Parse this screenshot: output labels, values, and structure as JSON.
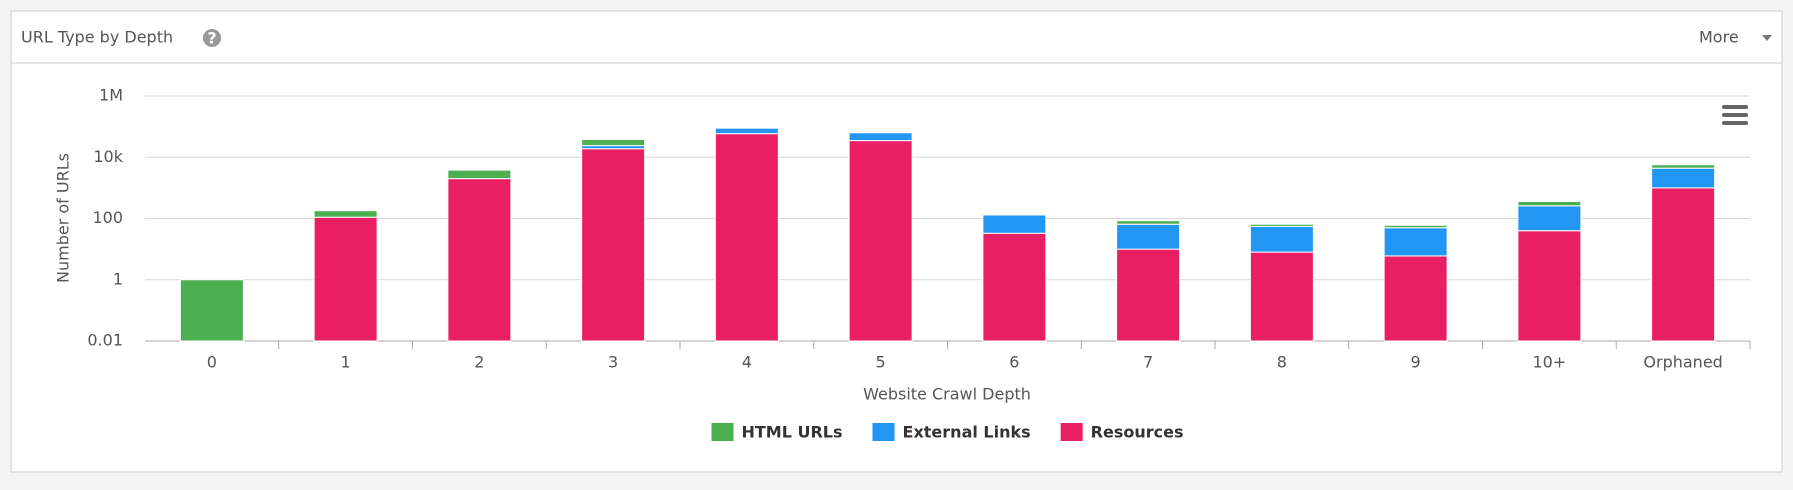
{
  "header": {
    "menu": "More",
    "help_icon": "?"
  },
  "chart_data": {
    "type": "bar",
    "stacked": true,
    "log_scale": true,
    "grid": true,
    "title": "URL Type by Depth",
    "x_label": "Website Crawl Depth",
    "y_label": "Number of URLs",
    "categories": [
      "0",
      "1",
      "2",
      "3",
      "4",
      "5",
      "6",
      "7",
      "8",
      "9",
      "10+",
      "Orphaned"
    ],
    "series": [
      {
        "name": "Resources",
        "color": "#e91e63",
        "values": [
          null,
          110,
          2000,
          19000,
          59000,
          35000,
          33,
          10,
          8,
          6,
          40,
          1000
        ]
      },
      {
        "name": "External Links",
        "color": "#2196f3",
        "values": [
          null,
          null,
          null,
          5000,
          30000,
          28000,
          97,
          55,
          47,
          44,
          220,
          3400
        ]
      },
      {
        "name": "HTML URLs",
        "color": "#4caf50",
        "values": [
          1,
          70,
          1800,
          14000,
          null,
          null,
          null,
          20,
          10,
          10,
          100,
          1300
        ]
      }
    ],
    "legend_order": [
      "HTML URLs",
      "External Links",
      "Resources"
    ],
    "ylim": [
      0.01,
      1000000
    ],
    "yticks": [
      0.01,
      1,
      100,
      {
        "value": 10000,
        "label": "10k"
      },
      {
        "value": 1000000,
        "label": "1M"
      }
    ]
  }
}
